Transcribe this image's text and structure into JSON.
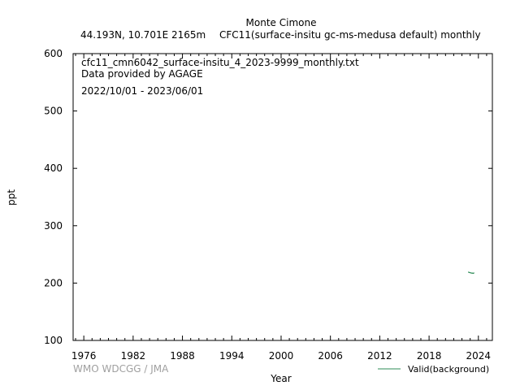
{
  "header": {
    "station": "Monte Cimone",
    "location": "44.193N, 10.701E 2165m",
    "series_desc": "CFC11(surface-insitu gc-ms-medusa default) monthly"
  },
  "info": {
    "filename": "cfc11_cmn6042_surface-insitu_4_2023-9999_monthly.txt",
    "provider": "Data provided by AGAGE",
    "period": "2022/10/01 - 2023/06/01"
  },
  "footer": {
    "credit": "WMO WDCGG / JMA"
  },
  "chart_data": {
    "type": "line",
    "xlabel": "Year",
    "ylabel": "ppt",
    "xlim": [
      1974.7,
      2025.7
    ],
    "ylim": [
      100,
      600
    ],
    "xticks": [
      1976,
      1982,
      1988,
      1994,
      2000,
      2006,
      2012,
      2018,
      2024
    ],
    "yticks": [
      100,
      200,
      300,
      400,
      500,
      600
    ],
    "grid": false,
    "legend_position": "bottom-right",
    "series": [
      {
        "name": "Valid(background)",
        "color": "#2e8b57",
        "x": [
          "2022-10",
          "2022-11",
          "2022-12",
          "2023-01",
          "2023-02",
          "2023-03",
          "2023-04",
          "2023-05",
          "2023-06"
        ],
        "values": [
          219.0,
          218.6,
          218.2,
          217.9,
          217.6,
          217.3,
          217.4,
          217.0,
          217.6
        ]
      }
    ]
  }
}
